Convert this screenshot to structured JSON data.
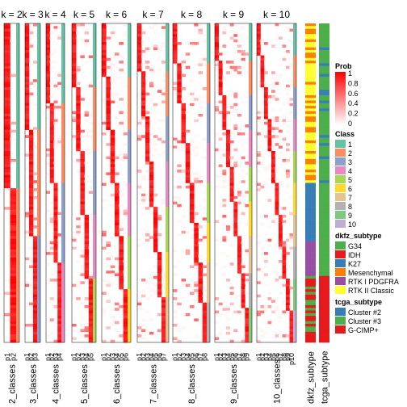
{
  "chart_data": {
    "type": "heatmap",
    "panels": [
      {
        "title": "k = 2",
        "columns": [
          "p1",
          "p2"
        ],
        "x_label": "2_classes"
      },
      {
        "title": "k = 3",
        "columns": [
          "p1",
          "p2",
          "p3"
        ],
        "x_label": "3_classes"
      },
      {
        "title": "k = 4",
        "columns": [
          "p1",
          "p2",
          "p3",
          "p4"
        ],
        "x_label": "4_classes"
      },
      {
        "title": "k = 5",
        "columns": [
          "p1",
          "p2",
          "p3",
          "p4",
          "p5"
        ],
        "x_label": "5_classes"
      },
      {
        "title": "k = 6",
        "columns": [
          "p1",
          "p2",
          "p3",
          "p4",
          "p5",
          "p6"
        ],
        "x_label": "6_classes"
      },
      {
        "title": "k = 7",
        "columns": [
          "p1",
          "p2",
          "p3",
          "p4",
          "p5",
          "p6",
          "p7"
        ],
        "x_label": "7_classes"
      },
      {
        "title": "k = 8",
        "columns": [
          "p1",
          "p2",
          "p3",
          "p4",
          "p5",
          "p6",
          "p7",
          "p8"
        ],
        "x_label": "8_classes"
      },
      {
        "title": "k = 9",
        "columns": [
          "p1",
          "p2",
          "p3",
          "p4",
          "p5",
          "p6",
          "p7",
          "p8",
          "p9"
        ],
        "x_label": "9_classes"
      },
      {
        "title": "k = 10",
        "columns": [
          "p1",
          "p2",
          "p3",
          "p4",
          "p5",
          "p6",
          "p7",
          "p8",
          "p9",
          "p10"
        ],
        "x_label": "10_classes"
      }
    ],
    "annotation_columns": [
      "dkfz_subtype",
      "tcga_subtype"
    ],
    "legends": [
      {
        "title": "Prob",
        "type": "gradient",
        "ticks": [
          "1",
          "0.8",
          "0.6",
          "0.4",
          "0.2",
          "0"
        ],
        "colors": [
          "#ff0000",
          "#ffffff"
        ]
      },
      {
        "title": "Class",
        "type": "discrete",
        "items": [
          {
            "label": "1",
            "color": "#66c2a5"
          },
          {
            "label": "2",
            "color": "#fc8d62"
          },
          {
            "label": "3",
            "color": "#8da0cb"
          },
          {
            "label": "4",
            "color": "#e78ac3"
          },
          {
            "label": "5",
            "color": "#a6d854"
          },
          {
            "label": "6",
            "color": "#ffd92f"
          },
          {
            "label": "7",
            "color": "#e5c494"
          },
          {
            "label": "8",
            "color": "#b3b3b3"
          },
          {
            "label": "9",
            "color": "#7fc97f"
          },
          {
            "label": "10",
            "color": "#beaed4"
          }
        ]
      },
      {
        "title": "dkfz_subtype",
        "type": "discrete",
        "items": [
          {
            "label": "G34",
            "color": "#4daf4a"
          },
          {
            "label": "IDH",
            "color": "#e41a1c"
          },
          {
            "label": "K27",
            "color": "#377eb8"
          },
          {
            "label": "Mesenchymal",
            "color": "#ff7f00"
          },
          {
            "label": "RTK I PDGFRA",
            "color": "#984ea3"
          },
          {
            "label": "RTK II Classic",
            "color": "#ffff33"
          }
        ]
      },
      {
        "title": "tcga_subtype",
        "type": "discrete",
        "items": [
          {
            "label": "Cluster #2",
            "color": "#377eb8"
          },
          {
            "label": "Cluster #3",
            "color": "#4daf4a"
          },
          {
            "label": "G-CIMP+",
            "color": "#e41a1c"
          }
        ]
      }
    ]
  }
}
